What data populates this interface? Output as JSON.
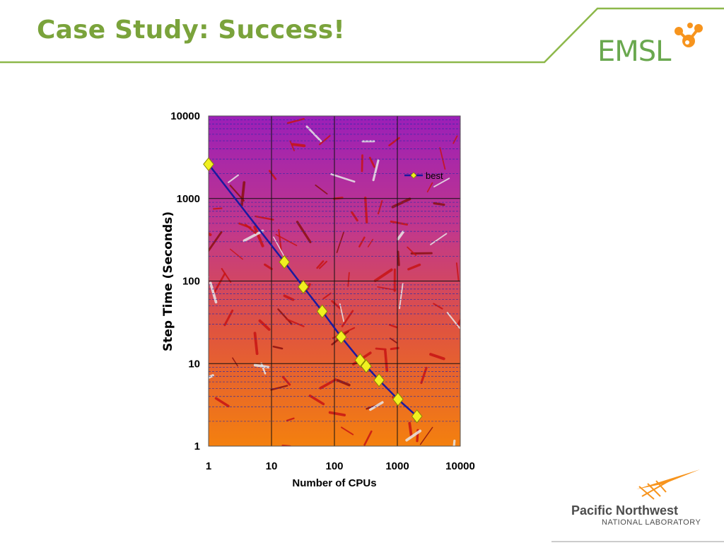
{
  "slide": {
    "title": "Case Study: Success!",
    "accent_color": "#7aa33b"
  },
  "logos": {
    "emsl": {
      "text": "EMSL",
      "icon": "molecule-icon",
      "color": "#6aa84f",
      "icon_color": "#f7941d"
    },
    "pnnl": {
      "name": "Pacific Northwest",
      "subtitle": "NATIONAL LABORATORY",
      "icon": "wing-icon",
      "icon_color": "#f7941d"
    }
  },
  "chart_data": {
    "type": "line",
    "title": "",
    "xlabel": "Number of CPUs",
    "ylabel": "Step Time (Seconds)",
    "x_scale": "log",
    "y_scale": "log",
    "xlim": [
      1,
      10000
    ],
    "ylim": [
      1,
      10000
    ],
    "x_ticks": [
      "1",
      "10",
      "100",
      "1000",
      "10000"
    ],
    "y_ticks": [
      "1",
      "10",
      "100",
      "1000",
      "10000"
    ],
    "grid": true,
    "legend": "top-right",
    "background": "gradient purple (top) to orange (bottom) with molecular structure image",
    "series": [
      {
        "name": "best",
        "line_color": "#1a1aa0",
        "marker": "diamond",
        "marker_color": "#f0f020",
        "x": [
          1,
          16,
          32,
          64,
          128,
          256,
          320,
          512,
          1024,
          2048
        ],
        "y": [
          2600,
          170,
          85,
          43,
          21,
          11,
          9.3,
          6.3,
          3.7,
          2.3
        ]
      }
    ]
  }
}
